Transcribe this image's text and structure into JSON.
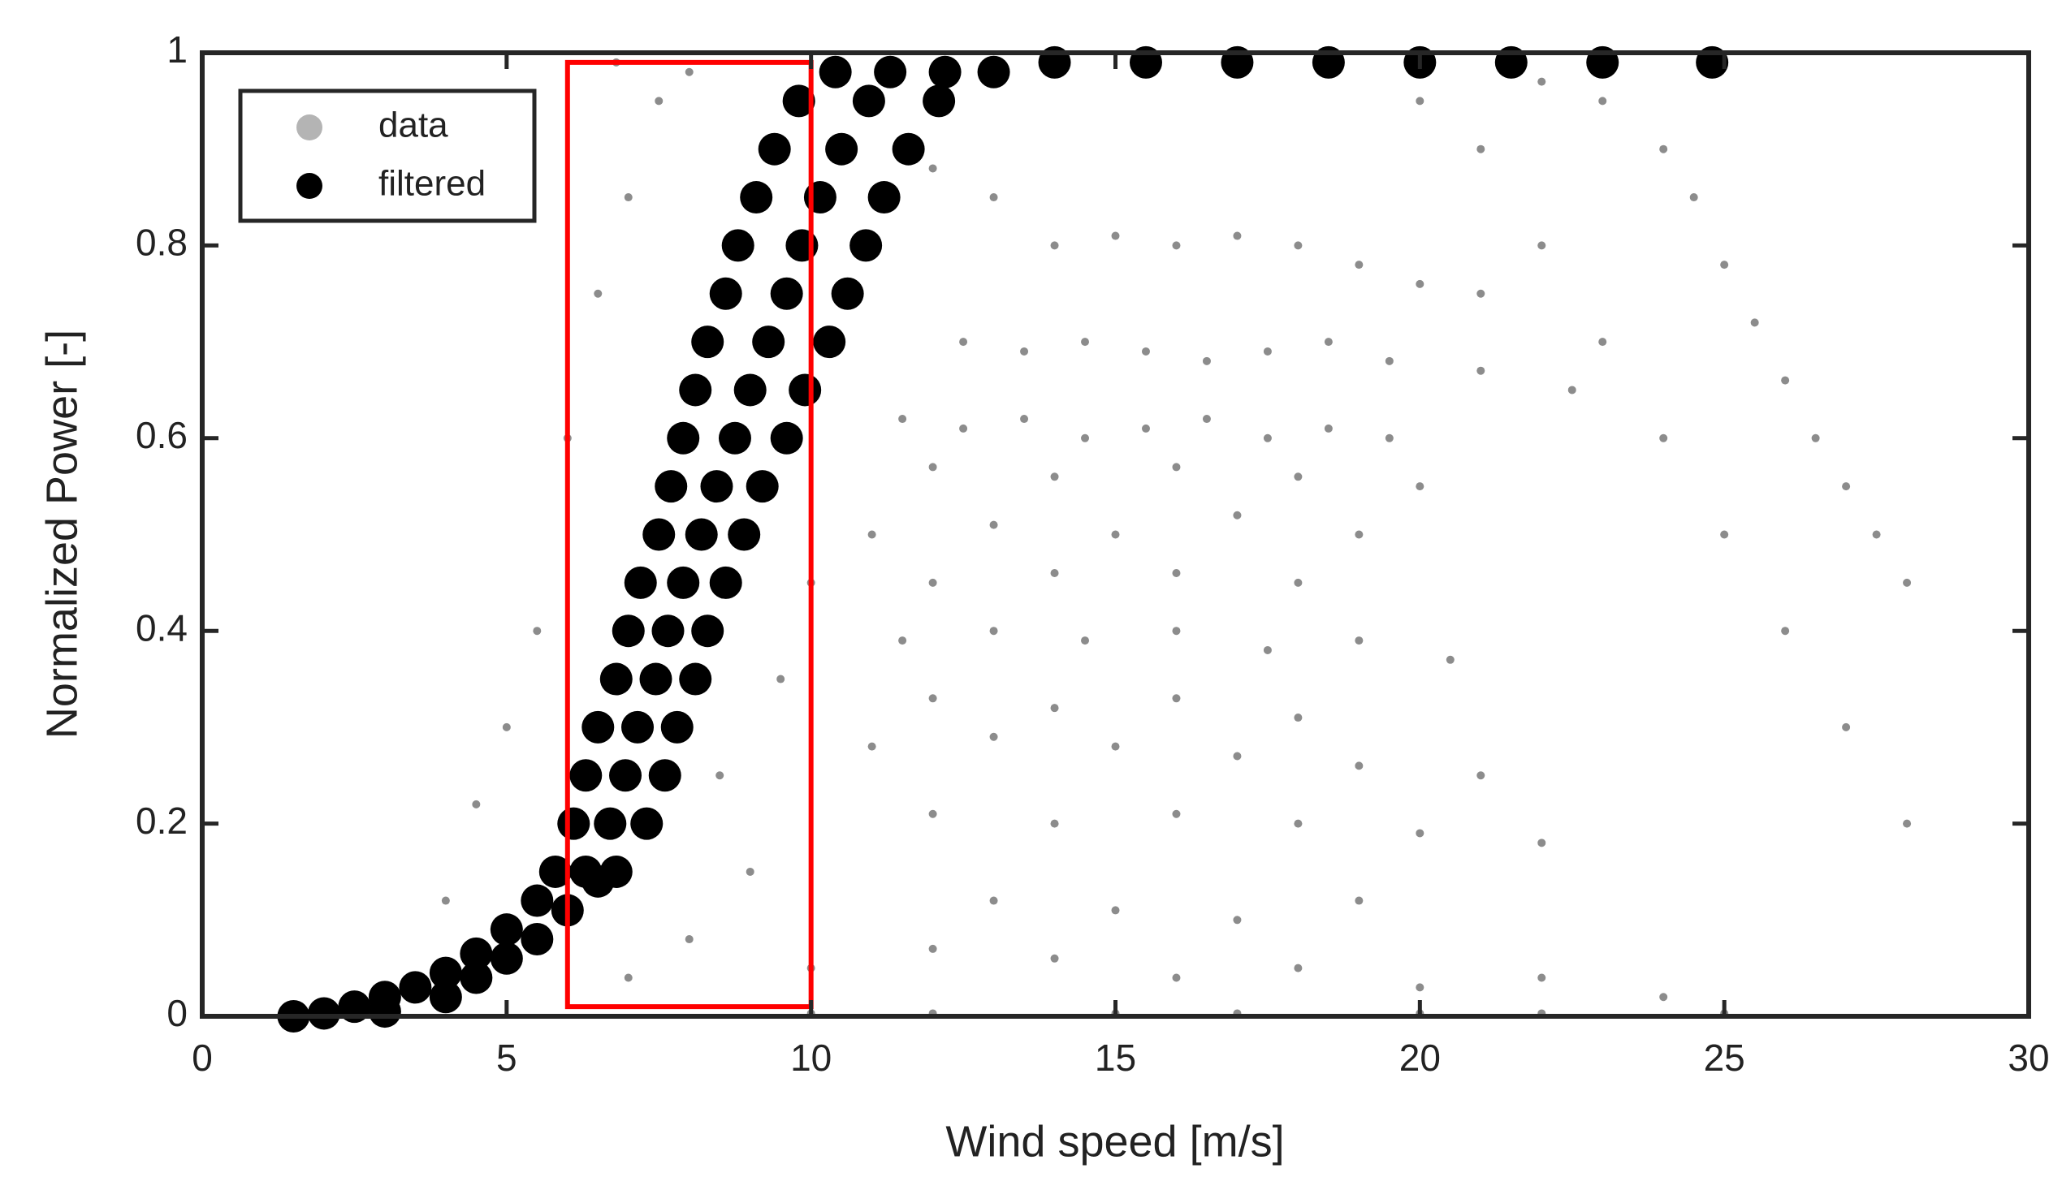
{
  "chart_data": {
    "type": "scatter",
    "xlabel": "Wind speed [m/s]",
    "ylabel": "Normalized Power [-]",
    "xlim": [
      0,
      30
    ],
    "ylim": [
      0,
      1
    ],
    "xticks": [
      0,
      5,
      10,
      15,
      20,
      25,
      30
    ],
    "yticks": [
      0,
      0.2,
      0.4,
      0.6,
      0.8,
      1
    ],
    "legend": "upper left",
    "series": [
      {
        "name": "data",
        "color": "#8c8c8c",
        "legend_color": "#b4b4b4",
        "x": [
          12,
          13,
          14,
          15,
          16,
          17,
          18,
          19,
          20,
          21,
          12.5,
          13.5,
          14.5,
          15.5,
          16.5,
          17.5,
          18.5,
          19.5,
          21,
          22.5,
          11.5,
          12.5,
          13.5,
          14.5,
          15.5,
          16.5,
          17.5,
          18.5,
          19.5,
          12,
          14,
          16,
          18,
          20,
          11,
          13,
          15,
          17,
          19,
          12,
          14,
          16,
          18,
          11.5,
          13,
          14.5,
          16,
          17.5,
          19,
          20.5,
          12,
          14,
          16,
          18,
          11,
          13,
          15,
          17,
          19,
          21,
          12,
          14,
          16,
          18,
          20,
          22,
          13,
          15,
          17,
          19,
          12,
          14,
          16,
          18,
          20,
          22,
          24,
          10,
          8,
          7,
          9,
          8.5,
          9.5,
          10,
          6,
          6.5,
          7,
          7.5,
          8,
          5,
          4.5,
          4,
          5.5,
          6.8,
          22,
          23,
          24,
          24.5,
          25,
          25.5,
          26,
          26.5,
          27,
          27.5,
          28,
          27,
          28,
          26,
          25,
          23,
          24,
          22,
          21,
          20,
          10,
          15,
          20,
          25,
          12,
          17,
          22
        ],
        "values": [
          0.88,
          0.85,
          0.8,
          0.81,
          0.8,
          0.81,
          0.8,
          0.78,
          0.76,
          0.75,
          0.7,
          0.69,
          0.7,
          0.69,
          0.68,
          0.69,
          0.7,
          0.68,
          0.67,
          0.65,
          0.62,
          0.61,
          0.62,
          0.6,
          0.61,
          0.62,
          0.6,
          0.61,
          0.6,
          0.57,
          0.56,
          0.57,
          0.56,
          0.55,
          0.5,
          0.51,
          0.5,
          0.52,
          0.5,
          0.45,
          0.46,
          0.46,
          0.45,
          0.39,
          0.4,
          0.39,
          0.4,
          0.38,
          0.39,
          0.37,
          0.33,
          0.32,
          0.33,
          0.31,
          0.28,
          0.29,
          0.28,
          0.27,
          0.26,
          0.25,
          0.21,
          0.2,
          0.21,
          0.2,
          0.19,
          0.18,
          0.12,
          0.11,
          0.1,
          0.12,
          0.07,
          0.06,
          0.04,
          0.05,
          0.03,
          0.04,
          0.02,
          0.05,
          0.08,
          0.04,
          0.15,
          0.25,
          0.35,
          0.45,
          0.6,
          0.75,
          0.85,
          0.95,
          0.98,
          0.3,
          0.22,
          0.12,
          0.4,
          0.99,
          0.97,
          0.95,
          0.9,
          0.85,
          0.78,
          0.72,
          0.66,
          0.6,
          0.55,
          0.5,
          0.45,
          0.3,
          0.2,
          0.4,
          0.5,
          0.7,
          0.6,
          0.8,
          0.9,
          0.95,
          0.003,
          0.003,
          0.003,
          0.003,
          0.003,
          0.003,
          0.003
        ]
      },
      {
        "name": "filtered",
        "color": "#000000",
        "legend_color": "#000000",
        "x": [
          1.5,
          2,
          2.5,
          3,
          3.5,
          4,
          4.5,
          5,
          5.5,
          4.5,
          5,
          5.5,
          6,
          6.5,
          3,
          4,
          5.8,
          6.3,
          6.8,
          6.1,
          6.7,
          7.3,
          6.3,
          6.95,
          7.6,
          6.5,
          7.15,
          7.8,
          6.8,
          7.45,
          8.1,
          7.0,
          7.65,
          8.3,
          7.2,
          7.9,
          8.6,
          7.5,
          8.2,
          8.9,
          7.7,
          8.45,
          9.2,
          7.9,
          8.75,
          9.6,
          8.1,
          9.0,
          9.9,
          8.3,
          9.3,
          10.3,
          8.6,
          9.6,
          10.6,
          8.8,
          9.85,
          10.9,
          9.1,
          10.15,
          11.2,
          9.4,
          10.5,
          11.6,
          9.8,
          10.95,
          12.1,
          10.4,
          11.3,
          12.2,
          13.0,
          14,
          15.5,
          17,
          18.5,
          20,
          21.5,
          23,
          24.8
        ],
        "values": [
          0,
          0.003,
          0.01,
          0.02,
          0.03,
          0.045,
          0.065,
          0.09,
          0.12,
          0.04,
          0.06,
          0.08,
          0.11,
          0.14,
          0.005,
          0.02,
          0.15,
          0.15,
          0.15,
          0.2,
          0.2,
          0.2,
          0.25,
          0.25,
          0.25,
          0.3,
          0.3,
          0.3,
          0.35,
          0.35,
          0.35,
          0.4,
          0.4,
          0.4,
          0.45,
          0.45,
          0.45,
          0.5,
          0.5,
          0.5,
          0.55,
          0.55,
          0.55,
          0.6,
          0.6,
          0.6,
          0.65,
          0.65,
          0.65,
          0.7,
          0.7,
          0.7,
          0.75,
          0.75,
          0.75,
          0.8,
          0.8,
          0.8,
          0.85,
          0.85,
          0.85,
          0.9,
          0.9,
          0.9,
          0.95,
          0.95,
          0.95,
          0.98,
          0.98,
          0.98,
          0.98,
          0.99,
          0.99,
          0.99,
          0.99,
          0.99,
          0.99,
          0.99,
          0.99
        ]
      }
    ],
    "highlight": {
      "xlim": [
        6,
        10
      ],
      "ylim": [
        0.01,
        0.99
      ],
      "color": "#ff0000"
    }
  }
}
